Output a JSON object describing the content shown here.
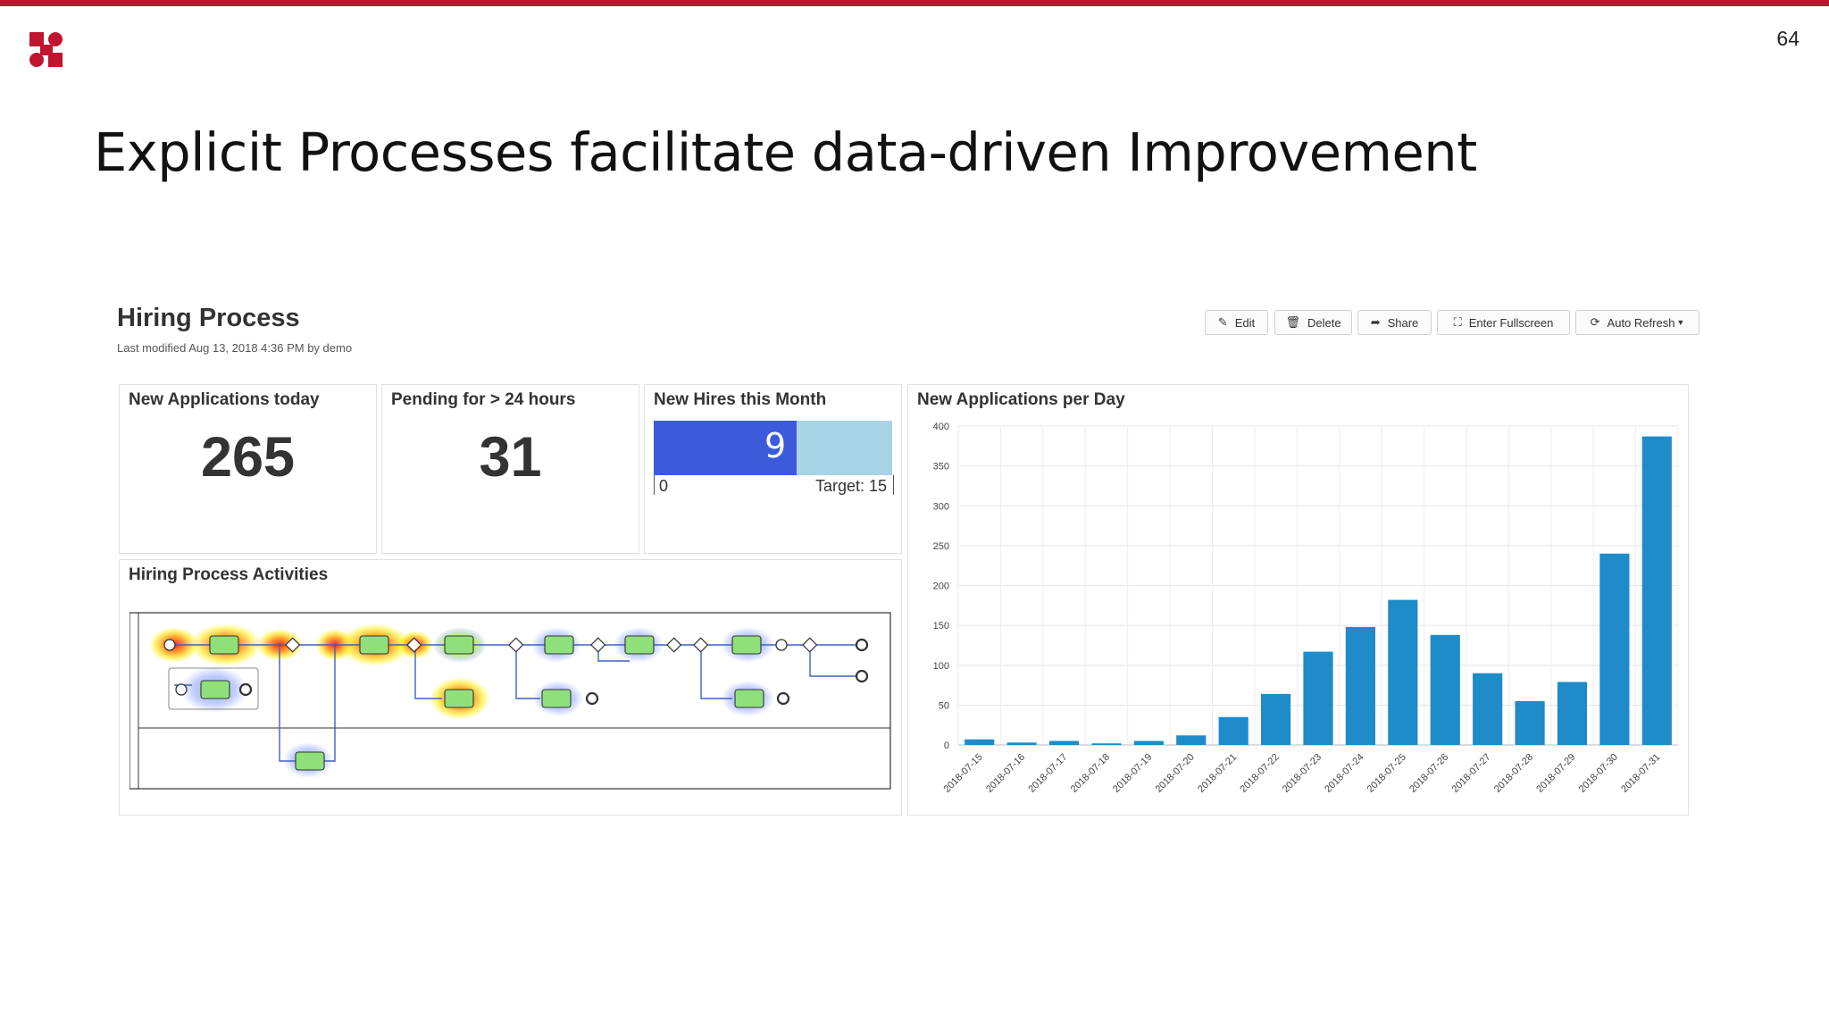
{
  "slide": {
    "number": "64",
    "title": "Explicit Processes facilitate data-driven Improvement",
    "brand_color": "#c0152f"
  },
  "dashboard": {
    "title": "Hiring Process",
    "meta": "Last modified Aug 13, 2018 4:36 PM by demo",
    "toolbar": {
      "edit": {
        "label": "Edit",
        "icon": "pencil-icon"
      },
      "delete": {
        "label": "Delete",
        "icon": "trash-icon"
      },
      "share": {
        "label": "Share",
        "icon": "share-arrow-icon"
      },
      "fullscreen": {
        "label": "Enter Fullscreen",
        "icon": "expand-icon"
      },
      "refresh": {
        "label": "Auto Refresh",
        "icon": "refresh-icon"
      }
    },
    "panels": {
      "apps_today": {
        "title": "New Applications today",
        "value": "265"
      },
      "pending": {
        "title": "Pending for > 24 hours",
        "value": "31"
      },
      "hires": {
        "title": "New Hires this Month",
        "value": "9",
        "min": "0",
        "target_label": "Target: 15",
        "current": 9,
        "target": 15
      },
      "activities": {
        "title": "Hiring Process Activities"
      },
      "per_day": {
        "title": "New Applications per Day"
      }
    }
  },
  "chart_data": {
    "type": "bar",
    "title": "New Applications per Day",
    "categories": [
      "2018-07-15",
      "2018-07-16",
      "2018-07-17",
      "2018-07-18",
      "2018-07-19",
      "2018-07-20",
      "2018-07-21",
      "2018-07-22",
      "2018-07-23",
      "2018-07-24",
      "2018-07-25",
      "2018-07-26",
      "2018-07-27",
      "2018-07-28",
      "2018-07-29",
      "2018-07-30",
      "2018-07-31"
    ],
    "values": [
      7,
      3,
      5,
      2,
      5,
      12,
      35,
      64,
      117,
      148,
      182,
      138,
      90,
      55,
      79,
      240,
      387
    ],
    "ylim": [
      0,
      400
    ],
    "yticks": [
      0,
      50,
      100,
      150,
      200,
      250,
      300,
      350,
      400
    ],
    "grid": true,
    "bar_color": "#1f8bc9"
  }
}
